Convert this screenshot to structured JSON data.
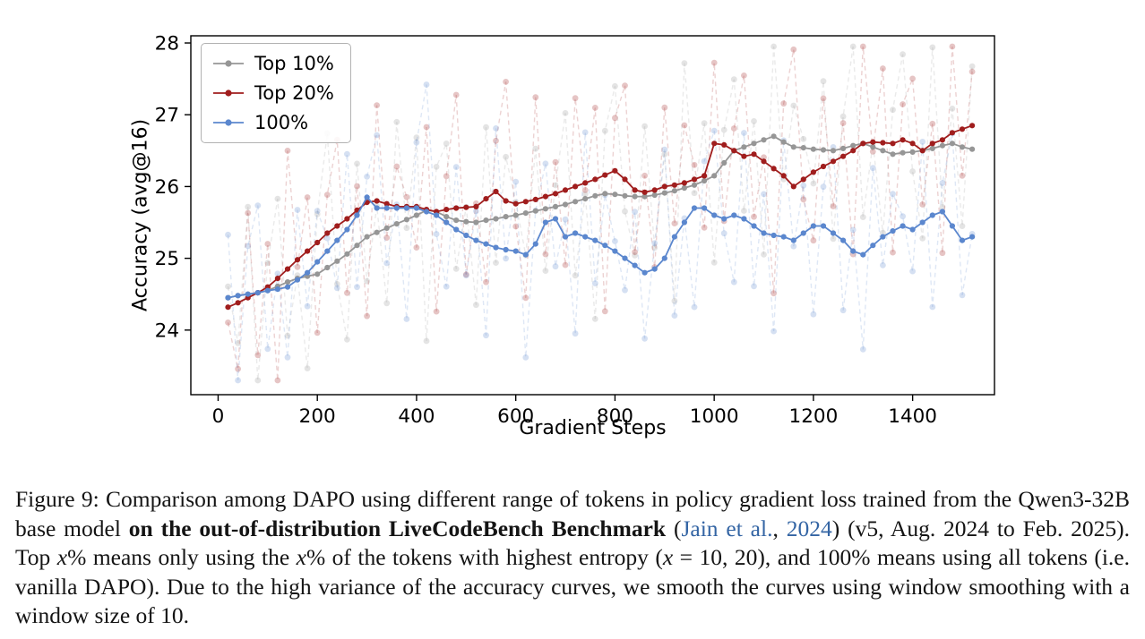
{
  "figure_label": "Figure 9",
  "chart_data": {
    "type": "line",
    "title": "",
    "xlabel": "Gradient Steps",
    "ylabel": "Accuracy (avg@16)",
    "xlim": [
      -55,
      1565
    ],
    "ylim": [
      23.1,
      28.1
    ],
    "x_ticks": [
      0,
      200,
      400,
      600,
      800,
      1000,
      1200,
      1400
    ],
    "y_ticks": [
      24,
      25,
      26,
      27,
      28
    ],
    "legend_position": "upper left",
    "grid": false,
    "x_start": 20,
    "x_step": 20,
    "series": [
      {
        "name": "Top 10%",
        "color": "#969696",
        "values": [
          24.45,
          24.48,
          24.5,
          24.52,
          24.55,
          24.61,
          24.67,
          24.72,
          24.75,
          24.78,
          24.87,
          24.96,
          25.06,
          25.18,
          25.3,
          25.36,
          25.42,
          25.48,
          25.54,
          25.6,
          25.67,
          25.65,
          25.58,
          25.53,
          25.51,
          25.5,
          25.53,
          25.55,
          25.58,
          25.6,
          25.63,
          25.66,
          25.69,
          25.72,
          25.75,
          25.79,
          25.83,
          25.87,
          25.9,
          25.89,
          25.87,
          25.86,
          25.86,
          25.88,
          25.91,
          25.94,
          25.98,
          26.02,
          26.08,
          26.15,
          26.33,
          26.5,
          26.55,
          26.6,
          26.65,
          26.7,
          26.62,
          26.55,
          26.54,
          26.52,
          26.51,
          26.5,
          26.53,
          26.57,
          26.6,
          26.55,
          26.5,
          26.45,
          26.47,
          26.48,
          26.5,
          26.53,
          26.57,
          26.6,
          26.55,
          26.52
        ]
      },
      {
        "name": "Top 20%",
        "color": "#a01d1d",
        "values": [
          24.32,
          24.38,
          24.45,
          24.52,
          24.6,
          24.72,
          24.85,
          24.98,
          25.1,
          25.22,
          25.35,
          25.45,
          25.55,
          25.67,
          25.78,
          25.8,
          25.76,
          25.72,
          25.72,
          25.72,
          25.68,
          25.65,
          25.68,
          25.7,
          25.71,
          25.72,
          25.83,
          25.93,
          25.8,
          25.76,
          25.79,
          25.82,
          25.86,
          25.9,
          25.95,
          26.0,
          26.05,
          26.1,
          26.16,
          26.22,
          26.1,
          25.95,
          25.92,
          25.95,
          26.0,
          26.02,
          26.05,
          26.1,
          26.15,
          26.6,
          26.58,
          26.5,
          26.42,
          26.45,
          26.35,
          26.25,
          26.15,
          26.0,
          26.1,
          26.2,
          26.28,
          26.35,
          26.42,
          26.5,
          26.6,
          26.62,
          26.61,
          26.6,
          26.65,
          26.6,
          26.5,
          26.6,
          26.65,
          26.75,
          26.8,
          26.85
        ]
      },
      {
        "name": "100%",
        "color": "#5b87ce",
        "values": [
          24.45,
          24.48,
          24.5,
          24.52,
          24.55,
          24.57,
          24.6,
          24.7,
          24.8,
          24.95,
          25.1,
          25.25,
          25.4,
          25.6,
          25.85,
          25.7,
          25.7,
          25.7,
          25.7,
          25.7,
          25.65,
          25.6,
          25.5,
          25.4,
          25.32,
          25.25,
          25.2,
          25.15,
          25.12,
          25.1,
          25.05,
          25.2,
          25.5,
          25.55,
          25.3,
          25.35,
          25.3,
          25.25,
          25.18,
          25.1,
          25.0,
          24.9,
          24.8,
          24.85,
          25.0,
          25.3,
          25.5,
          25.7,
          25.7,
          25.6,
          25.55,
          25.6,
          25.55,
          25.45,
          25.35,
          25.32,
          25.3,
          25.25,
          25.35,
          25.45,
          25.45,
          25.35,
          25.25,
          25.1,
          25.05,
          25.18,
          25.3,
          25.38,
          25.45,
          25.4,
          25.5,
          25.6,
          25.65,
          25.45,
          25.25,
          25.3
        ]
      }
    ],
    "raw_overlay": {
      "description": "unsmoothed curves shown faded and dashed behind smoothed lines",
      "opacity_line": 0.2,
      "opacity_marker": 0.26,
      "dash": "5 4",
      "clamp": [
        23.3,
        27.95
      ],
      "pattern": [
        0.15,
        -0.55,
        0.95,
        -1.05,
        0.35,
        1.3,
        -0.9,
        0.05,
        -1.35,
        0.75,
        1.5,
        -0.25,
        -1.0,
        1.1,
        -0.7,
        0.45,
        -1.2,
        1.4,
        -0.1,
        0.85,
        -1.45,
        0.55,
        1.05,
        -0.8,
        0.25,
        -1.25,
        1.2,
        -0.5,
        0.65
      ],
      "series": [
        {
          "amp": 1.05,
          "offset": 0
        },
        {
          "amp": 1.1,
          "offset": 11
        },
        {
          "amp": 1.0,
          "offset": 19
        }
      ]
    }
  },
  "caption": {
    "segments": [
      {
        "style": "normal",
        "text": "Figure 9: Comparison among DAPO using different range of tokens in policy gradient loss trained from the Qwen3-32B base model "
      },
      {
        "style": "bold",
        "text": "on the out-of-distribution LiveCodeBench Benchmark"
      },
      {
        "style": "normal",
        "text": " ("
      },
      {
        "style": "link",
        "text": "Jain et al."
      },
      {
        "style": "normal",
        "text": ", "
      },
      {
        "style": "link",
        "text": "2024"
      },
      {
        "style": "normal",
        "text": ") (v5, Aug. 2024 to Feb. 2025). Top "
      },
      {
        "style": "italic",
        "text": "x"
      },
      {
        "style": "normal",
        "text": "% means only using the "
      },
      {
        "style": "italic",
        "text": "x"
      },
      {
        "style": "normal",
        "text": "% of the tokens with highest entropy ("
      },
      {
        "style": "italic",
        "text": "x"
      },
      {
        "style": "normal",
        "text": " = 10, 20), and 100% means using all tokens (i.e. vanilla DAPO). Due to the high variance of the accuracy curves, we smooth the curves using window smoothing with a window size of 10."
      }
    ]
  }
}
